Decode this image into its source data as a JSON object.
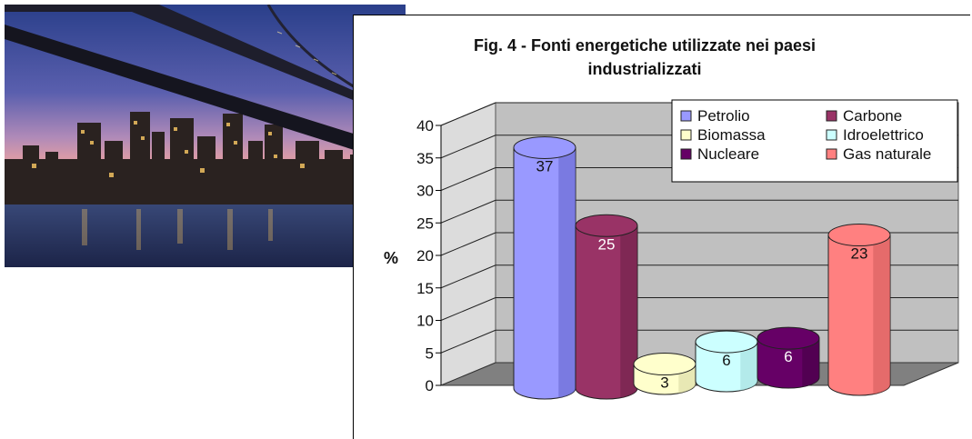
{
  "chart_data": {
    "type": "bar",
    "title": "Fig. 4 - Fonti energetiche utilizzate nei paesi\nindustrializzati",
    "ylabel": "%",
    "xlabel": "",
    "ylim": [
      0,
      40
    ],
    "yticks": [
      "0",
      "5",
      "10",
      "15",
      "20",
      "25",
      "30",
      "35",
      "40"
    ],
    "grid": true,
    "legend_position": "top-right",
    "series": [
      {
        "name": "Petrolio",
        "value": 37,
        "label": "37",
        "color": "#9999ff",
        "dark": "#6060c8"
      },
      {
        "name": "Carbone",
        "value": 25,
        "label": "25",
        "color": "#993366",
        "dark": "#6a1f45"
      },
      {
        "name": "Biomassa",
        "value": 3,
        "label": "3",
        "color": "#ffffcc",
        "dark": "#d6d6a0"
      },
      {
        "name": "Idroelettrico",
        "value": 6,
        "label": "6",
        "color": "#ccffff",
        "dark": "#9fd8d8"
      },
      {
        "name": "Nucleare",
        "value": 6,
        "label": "6",
        "color": "#660066",
        "dark": "#420042"
      },
      {
        "name": "Gas naturale",
        "value": 23,
        "label": "23",
        "color": "#ff8080",
        "dark": "#d05a5a"
      }
    ]
  }
}
